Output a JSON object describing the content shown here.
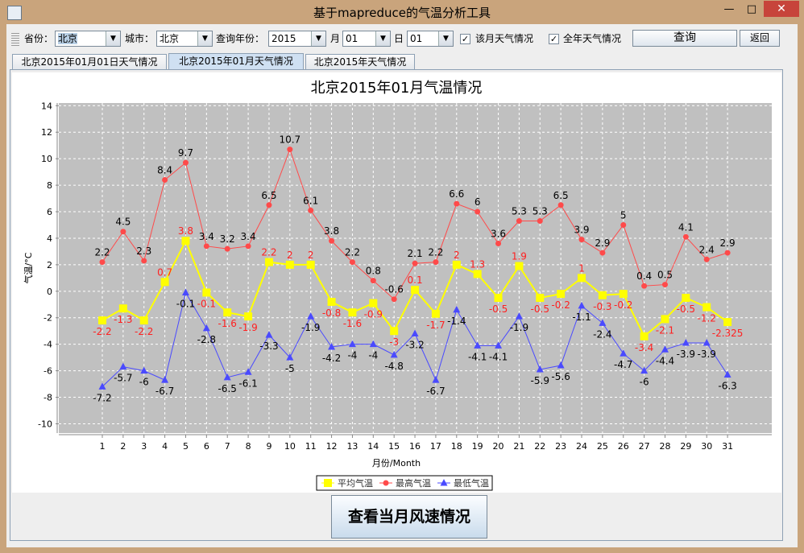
{
  "window": {
    "title": "基于mapreduce的气温分析工具"
  },
  "toolbar": {
    "fields": [
      {
        "label": "省份：",
        "value": "北京"
      },
      {
        "label": "城市：",
        "value": "北京"
      },
      {
        "label": "查询年份：",
        "value": "2015"
      },
      {
        "label": "月",
        "value": "01"
      },
      {
        "label": "日",
        "value": "01"
      }
    ],
    "checkboxes": [
      "该月天气情况",
      "全年天气情况"
    ],
    "buttons": [
      "查询",
      "返回"
    ]
  },
  "tabs": [
    "北京2015年01月01日天气情况",
    "北京2015年01月天气情况",
    "北京2015年天气情况"
  ],
  "chart_data": {
    "type": "line",
    "title": "北京2015年01月气温情况",
    "x_label": "月份/Month",
    "y_label": "气温/°C",
    "categories": [
      "1",
      "2",
      "3",
      "4",
      "5",
      "6",
      "7",
      "8",
      "9",
      "10",
      "11",
      "12",
      "13",
      "14",
      "15",
      "16",
      "17",
      "18",
      "19",
      "20",
      "21",
      "22",
      "23",
      "24",
      "25",
      "26",
      "27",
      "28",
      "29",
      "30",
      "31"
    ],
    "series": [
      {
        "name": "平均气温",
        "color": "#ffff00",
        "label_color": "#ff2020",
        "marker": "square",
        "values": [
          -2.2,
          -1.3,
          -2.2,
          0.7,
          3.8,
          -0.1,
          -1.6,
          -1.9,
          2.2,
          2,
          2,
          -0.8,
          -1.6,
          -0.9,
          -3,
          0.1,
          -1.7,
          2,
          1.3,
          -0.5,
          1.9,
          -0.5,
          -0.2,
          1,
          -0.3,
          -0.2,
          -3.4,
          -2.1,
          -0.5,
          -1.2,
          -2.325
        ]
      },
      {
        "name": "最高气温",
        "color": "#ff4a4a",
        "label_color": "#000000",
        "marker": "circle",
        "values": [
          2.2,
          4.5,
          2.3,
          8.4,
          9.7,
          3.4,
          3.2,
          3.4,
          6.5,
          10.7,
          6.1,
          3.8,
          2.2,
          0.8,
          -0.6,
          2.1,
          2.2,
          6.6,
          6,
          3.6,
          5.3,
          5.3,
          6.5,
          3.9,
          2.9,
          5,
          0.4,
          0.5,
          4.1,
          2.4,
          2.9
        ]
      },
      {
        "name": "最低气温",
        "color": "#4a4aff",
        "label_color": "#000000",
        "marker": "triangle",
        "values": [
          -7.2,
          -5.7,
          -6,
          -6.7,
          -0.1,
          -2.8,
          -6.5,
          -6.1,
          -3.3,
          -5,
          -1.9,
          -4.2,
          -4,
          -4,
          -4.8,
          -3.2,
          -6.7,
          -1.4,
          -4.1,
          -4.1,
          -1.9,
          -5.9,
          -5.6,
          -1.1,
          -2.4,
          -4.7,
          -6,
          -4.4,
          -3.9,
          -3.9,
          -6.3
        ]
      }
    ],
    "ylim": [
      -10.7,
      14.2
    ],
    "yticks": [
      -10,
      -8,
      -6,
      -4,
      -2,
      0,
      2,
      4,
      6,
      8,
      10,
      12,
      14
    ],
    "grid": true,
    "legend": "bottom"
  },
  "footer_button": "查看当月风速情况"
}
